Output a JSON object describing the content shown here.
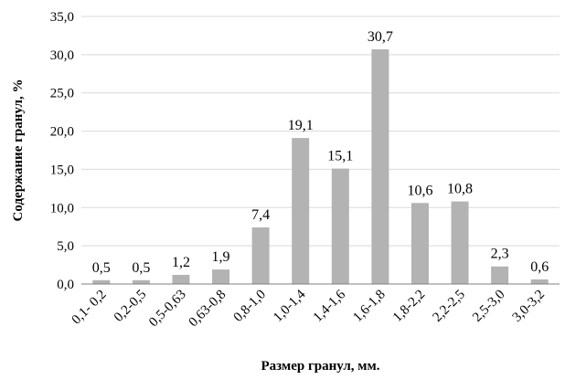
{
  "chart_data": {
    "type": "bar",
    "title": "",
    "xlabel": "Размер гранул, мм.",
    "ylabel": "Содержание гранул, %",
    "categories": [
      "0,1- 0,2",
      "0,2-0,5",
      "0,5-0,63",
      "0,63-0,8",
      "0,8-1,0",
      "1,0-1,4",
      "1,4-1,6",
      "1,6-1,8",
      "1,8-2,2",
      "2,2-2,5",
      "2,5-3,0",
      "3,0-3,2"
    ],
    "values": [
      0.5,
      0.5,
      1.2,
      1.9,
      7.4,
      19.1,
      15.1,
      30.7,
      10.6,
      10.8,
      2.3,
      0.6
    ],
    "value_labels": [
      "0,5",
      "0,5",
      "1,2",
      "1,9",
      "7,4",
      "19,1",
      "15,1",
      "30,7",
      "10,6",
      "10,8",
      "2,3",
      "0,6"
    ],
    "ylim": [
      0,
      35
    ],
    "yticks": [
      0,
      5,
      10,
      15,
      20,
      25,
      30,
      35
    ],
    "ytick_labels": [
      "0,0",
      "5,0",
      "10,0",
      "15,0",
      "20,0",
      "25,0",
      "30,0",
      "35,0"
    ],
    "grid": true,
    "legend": "none",
    "colors": {
      "bar": "#b3b3b3",
      "grid": "#d9d9d9",
      "axis": "#808080"
    }
  }
}
